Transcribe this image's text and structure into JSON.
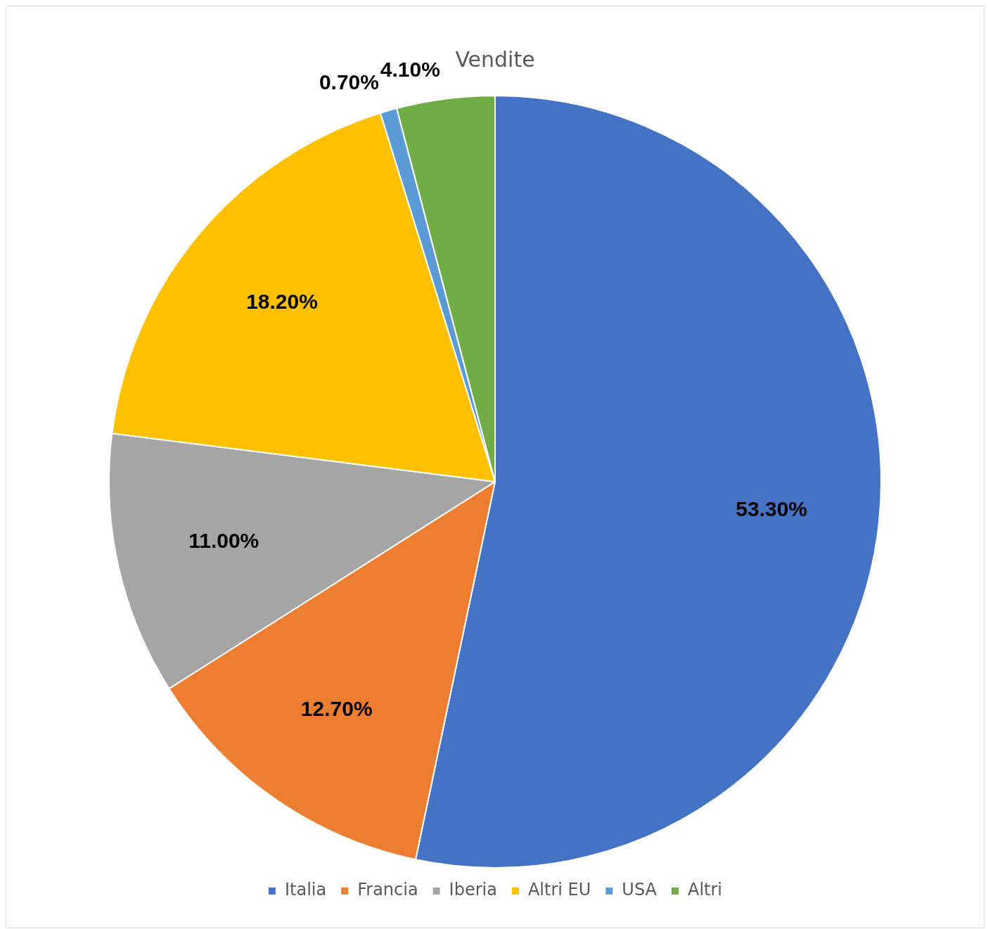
{
  "chart_data": {
    "type": "pie",
    "title": "Vendite",
    "categories": [
      "Italia",
      "Francia",
      "Iberia",
      "Altri EU",
      "USA",
      "Altri"
    ],
    "values": [
      53.3,
      12.7,
      11.0,
      18.2,
      0.7,
      4.1
    ],
    "colors": [
      "#4472c4",
      "#ed7d31",
      "#a5a5a5",
      "#ffc000",
      "#5b9bd5",
      "#70ad47"
    ],
    "value_labels": [
      "53.30%",
      "12.70%",
      "11.00%",
      "18.20%",
      "0.70%",
      "4.10%"
    ],
    "legend": "bottom"
  }
}
